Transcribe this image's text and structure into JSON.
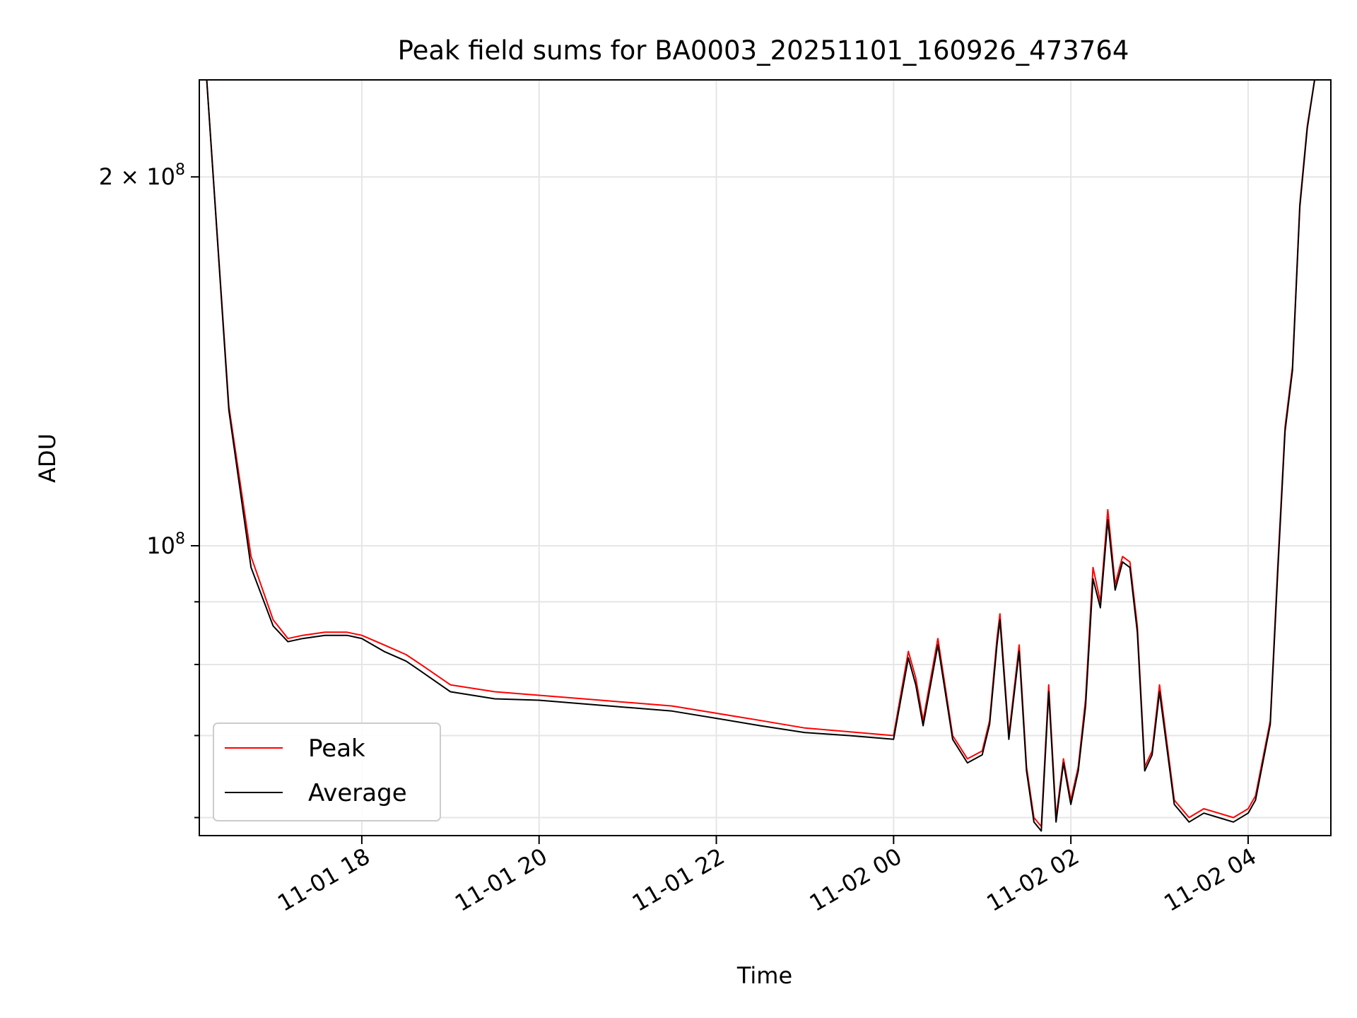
{
  "chart_data": {
    "type": "line",
    "title": "Peak field sums for BA0003_20251101_160926_473764",
    "xlabel": "Time",
    "ylabel": "ADU",
    "yscale": "log",
    "ylim": [
      58000000,
      240000000
    ],
    "xlim": [
      "2025-11-01 16:10",
      "2025-11-02 04:56"
    ],
    "grid": true,
    "legend_position": "lower-left",
    "x_ticks": [
      {
        "value": "2025-11-01 18:00",
        "label": "11-01 18"
      },
      {
        "value": "2025-11-01 20:00",
        "label": "11-01 20"
      },
      {
        "value": "2025-11-01 22:00",
        "label": "11-01 22"
      },
      {
        "value": "2025-11-02 00:00",
        "label": "11-02 00"
      },
      {
        "value": "2025-11-02 02:00",
        "label": "11-02 02"
      },
      {
        "value": "2025-11-02 04:00",
        "label": "11-02 04"
      }
    ],
    "y_ticks": [
      {
        "value": 100000000,
        "label_mantissa": "",
        "label_base": "10",
        "label_exp": "8"
      },
      {
        "value": 200000000,
        "label_mantissa": "2 × ",
        "label_base": "10",
        "label_exp": "8"
      }
    ],
    "y_minor_ticks": [
      60000000,
      70000000,
      80000000,
      90000000
    ],
    "series": [
      {
        "name": "Peak",
        "color": "#ff0000",
        "x": [
          "2025-11-01 16:15",
          "2025-11-01 16:30",
          "2025-11-01 16:45",
          "2025-11-01 17:00",
          "2025-11-01 17:10",
          "2025-11-01 17:20",
          "2025-11-01 17:35",
          "2025-11-01 17:50",
          "2025-11-01 18:00",
          "2025-11-01 18:15",
          "2025-11-01 18:30",
          "2025-11-01 18:40",
          "2025-11-01 19:00",
          "2025-11-01 19:30",
          "2025-11-01 20:00",
          "2025-11-01 20:30",
          "2025-11-01 21:00",
          "2025-11-01 21:30",
          "2025-11-01 22:00",
          "2025-11-01 22:30",
          "2025-11-01 23:00",
          "2025-11-01 23:30",
          "2025-11-02 00:00",
          "2025-11-02 00:10",
          "2025-11-02 00:15",
          "2025-11-02 00:20",
          "2025-11-02 00:30",
          "2025-11-02 00:40",
          "2025-11-02 00:50",
          "2025-11-02 01:00",
          "2025-11-02 01:05",
          "2025-11-02 01:10",
          "2025-11-02 01:12",
          "2025-11-02 01:18",
          "2025-11-02 01:25",
          "2025-11-02 01:30",
          "2025-11-02 01:35",
          "2025-11-02 01:40",
          "2025-11-02 01:45",
          "2025-11-02 01:50",
          "2025-11-02 01:55",
          "2025-11-02 02:00",
          "2025-11-02 02:05",
          "2025-11-02 02:10",
          "2025-11-02 02:15",
          "2025-11-02 02:20",
          "2025-11-02 02:25",
          "2025-11-02 02:30",
          "2025-11-02 02:35",
          "2025-11-02 02:40",
          "2025-11-02 02:45",
          "2025-11-02 02:50",
          "2025-11-02 02:55",
          "2025-11-02 03:00",
          "2025-11-02 03:10",
          "2025-11-02 03:15",
          "2025-11-02 03:20",
          "2025-11-02 03:30",
          "2025-11-02 03:40",
          "2025-11-02 03:50",
          "2025-11-02 04:00",
          "2025-11-02 04:05",
          "2025-11-02 04:15",
          "2025-11-02 04:20",
          "2025-11-02 04:25",
          "2025-11-02 04:30",
          "2025-11-02 04:35",
          "2025-11-02 04:40",
          "2025-11-02 04:45",
          "2025-11-02 04:50"
        ],
        "y": [
          240000000,
          130000000,
          98000000,
          87000000,
          84000000,
          84500000,
          85000000,
          85000000,
          84500000,
          83000000,
          81500000,
          80000000,
          77000000,
          76000000,
          75500000,
          75000000,
          74500000,
          74000000,
          73000000,
          72000000,
          71000000,
          70500000,
          70000000,
          82000000,
          78000000,
          72000000,
          84000000,
          70000000,
          67000000,
          68000000,
          72000000,
          84000000,
          88000000,
          70000000,
          83000000,
          66000000,
          60000000,
          59000000,
          77000000,
          60000000,
          67000000,
          62000000,
          66000000,
          75000000,
          96000000,
          90000000,
          107000000,
          93000000,
          98000000,
          97000000,
          86000000,
          66000000,
          68000000,
          77000000,
          62000000,
          61000000,
          60000000,
          61000000,
          60500000,
          60000000,
          61000000,
          62500000,
          72000000,
          96000000,
          125000000,
          140000000,
          190000000,
          220000000,
          240000000,
          240000000
        ]
      },
      {
        "name": "Average",
        "color": "#000000",
        "x": [
          "2025-11-01 16:15",
          "2025-11-01 16:30",
          "2025-11-01 16:45",
          "2025-11-01 17:00",
          "2025-11-01 17:10",
          "2025-11-01 17:20",
          "2025-11-01 17:35",
          "2025-11-01 17:50",
          "2025-11-01 18:00",
          "2025-11-01 18:15",
          "2025-11-01 18:30",
          "2025-11-01 18:40",
          "2025-11-01 19:00",
          "2025-11-01 19:30",
          "2025-11-01 20:00",
          "2025-11-01 20:30",
          "2025-11-01 21:00",
          "2025-11-01 21:30",
          "2025-11-01 22:00",
          "2025-11-01 22:30",
          "2025-11-01 23:00",
          "2025-11-01 23:30",
          "2025-11-02 00:00",
          "2025-11-02 00:10",
          "2025-11-02 00:15",
          "2025-11-02 00:20",
          "2025-11-02 00:30",
          "2025-11-02 00:40",
          "2025-11-02 00:50",
          "2025-11-02 01:00",
          "2025-11-02 01:05",
          "2025-11-02 01:10",
          "2025-11-02 01:12",
          "2025-11-02 01:18",
          "2025-11-02 01:25",
          "2025-11-02 01:30",
          "2025-11-02 01:35",
          "2025-11-02 01:40",
          "2025-11-02 01:45",
          "2025-11-02 01:50",
          "2025-11-02 01:55",
          "2025-11-02 02:00",
          "2025-11-02 02:05",
          "2025-11-02 02:10",
          "2025-11-02 02:15",
          "2025-11-02 02:20",
          "2025-11-02 02:25",
          "2025-11-02 02:30",
          "2025-11-02 02:35",
          "2025-11-02 02:40",
          "2025-11-02 02:45",
          "2025-11-02 02:50",
          "2025-11-02 02:55",
          "2025-11-02 03:00",
          "2025-11-02 03:10",
          "2025-11-02 03:15",
          "2025-11-02 03:20",
          "2025-11-02 03:30",
          "2025-11-02 03:40",
          "2025-11-02 03:50",
          "2025-11-02 04:00",
          "2025-11-02 04:05",
          "2025-11-02 04:15",
          "2025-11-02 04:20",
          "2025-11-02 04:25",
          "2025-11-02 04:30",
          "2025-11-02 04:35",
          "2025-11-02 04:40",
          "2025-11-02 04:45",
          "2025-11-02 04:50"
        ],
        "y": [
          240000000,
          129000000,
          96000000,
          86000000,
          83500000,
          84000000,
          84500000,
          84500000,
          84000000,
          82000000,
          80500000,
          79000000,
          76000000,
          75000000,
          74800000,
          74300000,
          73800000,
          73300000,
          72300000,
          71300000,
          70400000,
          70000000,
          69500000,
          81000000,
          77000000,
          71300000,
          83000000,
          69500000,
          66500000,
          67500000,
          71500000,
          83000000,
          87000000,
          69500000,
          82000000,
          65500000,
          59500000,
          58500000,
          76000000,
          59500000,
          66500000,
          61500000,
          65500000,
          74000000,
          94000000,
          89000000,
          105000000,
          92000000,
          97000000,
          96000000,
          85000000,
          65500000,
          67500000,
          76000000,
          61500000,
          60500000,
          59500000,
          60500000,
          60000000,
          59500000,
          60500000,
          62000000,
          71500000,
          95000000,
          124000000,
          139000000,
          189000000,
          219000000,
          240000000,
          240000000
        ]
      }
    ]
  }
}
